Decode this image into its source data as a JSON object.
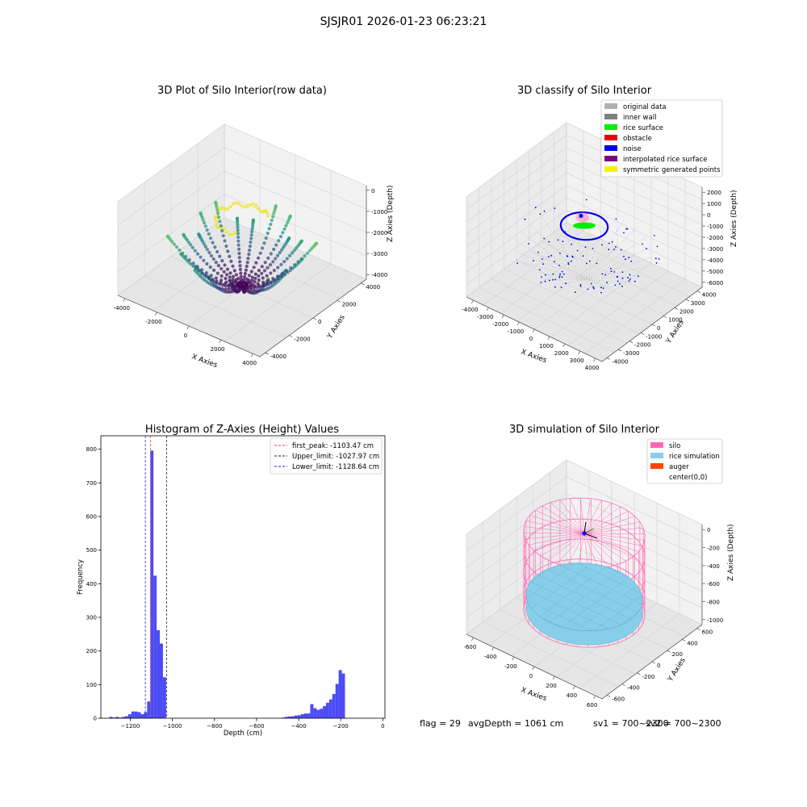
{
  "figure_title": "SJSJR01 2026-01-23 06:23:21",
  "footer": {
    "flag": "flag = 29",
    "avg_depth": "avgDepth = 1061 cm",
    "sv1": "sv1 = 700~2300",
    "sv2": "sv2 = 700~2300"
  },
  "colors": {
    "hist_bar": "#4b4bf5",
    "first_peak": "#e8423c",
    "upper_limit": "#222222",
    "lower_limit": "#2222dd",
    "original_data": "#b0b0b0",
    "inner_wall": "#808080",
    "rice_surface": "#00ee00",
    "obstacle": "#ee0000",
    "noise": "#0000ee",
    "interpolated_rice_surface": "#800080",
    "symmetric_generated_points": "#f5f500",
    "silo": "#ff69b4",
    "rice_simulation": "#87ceeb",
    "auger": "#ff4500"
  },
  "chart_data": [
    {
      "type": "scatter",
      "projection": "3d",
      "title": "3D Plot of Silo Interior(row data)",
      "xlabel": "X Axies",
      "ylabel": "Y Axies",
      "zlabel": "Z Axies (Depth)",
      "x_ticks": [
        "-4000",
        "-2000",
        "0",
        "2000",
        "4000"
      ],
      "y_ticks": [
        "-4000",
        "-2000",
        "0",
        "2000",
        "4000"
      ],
      "z_ticks": [
        "0",
        "-1000",
        "-2000",
        "-3000",
        "-4000"
      ],
      "colormap": "viridis",
      "grid": true
    },
    {
      "type": "scatter",
      "projection": "3d",
      "title": "3D classify of Silo Interior",
      "xlabel": "X Axies",
      "ylabel": "Y Axies",
      "zlabel": "Z Axies (Depth)",
      "x_ticks": [
        "-4000",
        "-3000",
        "-2000",
        "-1000",
        "0",
        "1000",
        "2000",
        "3000",
        "4000"
      ],
      "y_ticks": [
        "-4000",
        "-3000",
        "-2000",
        "-1000",
        "0",
        "1000",
        "2000",
        "3000",
        "4000"
      ],
      "z_ticks": [
        "2000",
        "1000",
        "0",
        "-1000",
        "-2000",
        "-3000",
        "-4000",
        "-5000",
        "-6000"
      ],
      "legend": [
        "original data",
        "inner wall",
        "rice surface",
        "obstacle",
        "noise",
        "interpolated rice surface",
        "symmetric generated points"
      ],
      "legend_position": "top-right",
      "grid": true
    },
    {
      "type": "bar",
      "title": "Histogram of Z-Axies (Height) Values",
      "xlabel": "Depth (cm)",
      "ylabel": "Frequency",
      "x_ticks": [
        -1200,
        -1000,
        -800,
        -600,
        -400,
        -200,
        0
      ],
      "y_ticks": [
        0,
        100,
        200,
        300,
        400,
        500,
        600,
        700,
        800
      ],
      "xlim": [
        -1340,
        10
      ],
      "ylim": [
        0,
        840
      ],
      "bin_width": 15,
      "bins": [
        {
          "x": -1300,
          "count": 4
        },
        {
          "x": -1285,
          "count": 2
        },
        {
          "x": -1270,
          "count": 4
        },
        {
          "x": -1255,
          "count": 2
        },
        {
          "x": -1240,
          "count": 4
        },
        {
          "x": -1225,
          "count": 6
        },
        {
          "x": -1210,
          "count": 12
        },
        {
          "x": -1195,
          "count": 20
        },
        {
          "x": -1180,
          "count": 20
        },
        {
          "x": -1165,
          "count": 18
        },
        {
          "x": -1150,
          "count": 12
        },
        {
          "x": -1135,
          "count": 18
        },
        {
          "x": -1120,
          "count": 50
        },
        {
          "x": -1105,
          "count": 796
        },
        {
          "x": -1090,
          "count": 424
        },
        {
          "x": -1075,
          "count": 262
        },
        {
          "x": -1060,
          "count": 222
        },
        {
          "x": -1045,
          "count": 122
        },
        {
          "x": -480,
          "count": 2
        },
        {
          "x": -465,
          "count": 4
        },
        {
          "x": -450,
          "count": 5
        },
        {
          "x": -435,
          "count": 6
        },
        {
          "x": -420,
          "count": 8
        },
        {
          "x": -405,
          "count": 9
        },
        {
          "x": -390,
          "count": 12
        },
        {
          "x": -375,
          "count": 14
        },
        {
          "x": -360,
          "count": 14
        },
        {
          "x": -345,
          "count": 42
        },
        {
          "x": -330,
          "count": 30
        },
        {
          "x": -315,
          "count": 25
        },
        {
          "x": -300,
          "count": 28
        },
        {
          "x": -285,
          "count": 36
        },
        {
          "x": -270,
          "count": 46
        },
        {
          "x": -255,
          "count": 56
        },
        {
          "x": -240,
          "count": 72
        },
        {
          "x": -225,
          "count": 102
        },
        {
          "x": -210,
          "count": 143
        },
        {
          "x": -195,
          "count": 133
        }
      ],
      "lines": [
        {
          "name": "first_peak: -1103.47 cm",
          "x": -1103.47,
          "style": "dashed"
        },
        {
          "name": "Upper_limit: -1027.97 cm",
          "x": -1027.97,
          "style": "dashed"
        },
        {
          "name": "Lower_limit: -1128.64 cm",
          "x": -1128.64,
          "style": "dashed"
        }
      ],
      "legend_position": "top-right",
      "grid": false
    },
    {
      "type": "scatter",
      "projection": "3d",
      "title": "3D simulation of Silo Interior",
      "xlabel": "X Axies",
      "ylabel": "Y Axies",
      "zlabel": "Z Axies (Depth)",
      "x_ticks": [
        "-600",
        "-400",
        "-200",
        "0",
        "200",
        "400",
        "600"
      ],
      "y_ticks": [
        "-600",
        "-400",
        "-200",
        "0",
        "200",
        "400",
        "600"
      ],
      "z_ticks": [
        "0",
        "-200",
        "-400",
        "-600",
        "-800",
        "-1000"
      ],
      "legend": [
        "silo",
        "rice simulation",
        "auger",
        "center(0,0)"
      ],
      "legend_position": "top-right",
      "grid": true
    }
  ]
}
